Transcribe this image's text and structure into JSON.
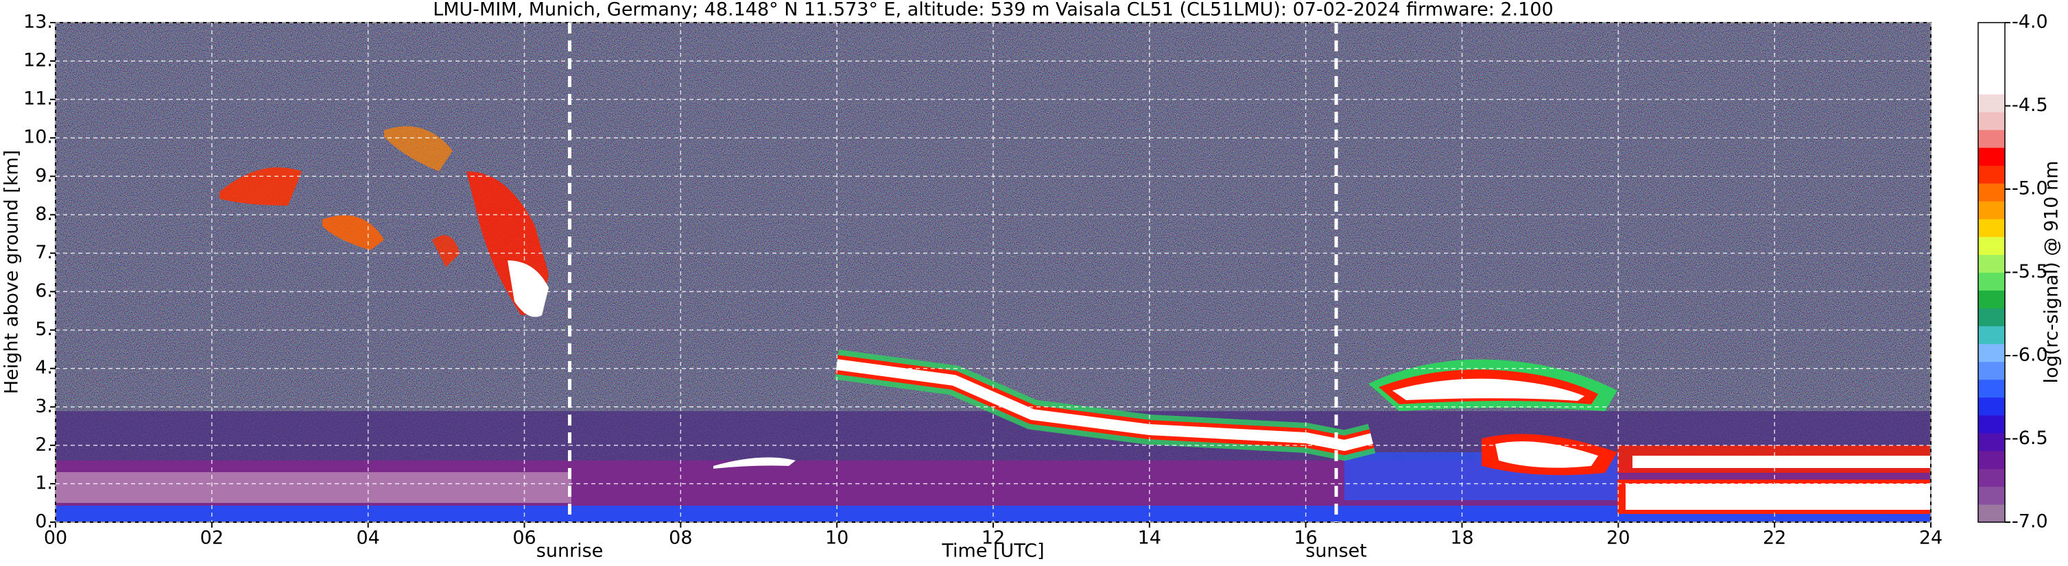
{
  "chart_data": {
    "type": "heatmap",
    "title": "LMU-MIM, Munich, Germany; 48.148° N 11.573° E, altitude: 539 m    Vaisala CL51 (CL51LMU): 07-02-2024    firmware: 2.100",
    "x_label": "Time [UTC]",
    "y_label": "Height above ground [km]",
    "colorbar_label": "log(rc-signal) @ 910 nm",
    "xlim": [
      0,
      24
    ],
    "xticks": [
      {
        "value": 0,
        "label": "00"
      },
      {
        "value": 2,
        "label": "02"
      },
      {
        "value": 4,
        "label": "04"
      },
      {
        "value": 6,
        "label": "06"
      },
      {
        "value": 8,
        "label": "08"
      },
      {
        "value": 10,
        "label": "10"
      },
      {
        "value": 12,
        "label": "12"
      },
      {
        "value": 14,
        "label": "14"
      },
      {
        "value": 16,
        "label": "16"
      },
      {
        "value": 18,
        "label": "18"
      },
      {
        "value": 20,
        "label": "20"
      },
      {
        "value": 22,
        "label": "22"
      },
      {
        "value": 24,
        "label": "24"
      }
    ],
    "ylim": [
      0,
      13
    ],
    "yticks": [
      {
        "value": 0,
        "label": "0."
      },
      {
        "value": 1,
        "label": "1."
      },
      {
        "value": 2,
        "label": "2."
      },
      {
        "value": 3,
        "label": "3."
      },
      {
        "value": 4,
        "label": "4."
      },
      {
        "value": 5,
        "label": "5."
      },
      {
        "value": 6,
        "label": "6."
      },
      {
        "value": 7,
        "label": "7."
      },
      {
        "value": 8,
        "label": "8."
      },
      {
        "value": 9,
        "label": "9."
      },
      {
        "value": 10,
        "label": "10."
      },
      {
        "value": 11,
        "label": "11."
      },
      {
        "value": 12,
        "label": "12."
      },
      {
        "value": 13,
        "label": "13."
      }
    ],
    "clim": [
      -7,
      -4
    ],
    "cticks": [
      {
        "value": -4,
        "label": "-4.0"
      },
      {
        "value": -4.5,
        "label": "-4.5"
      },
      {
        "value": -5,
        "label": "-5.0"
      },
      {
        "value": -5.5,
        "label": "-5.5"
      },
      {
        "value": -6,
        "label": "-6.0"
      },
      {
        "value": -6.5,
        "label": "-6.5"
      },
      {
        "value": -7,
        "label": "-7.0"
      }
    ],
    "colorscale": [
      "#9a78a0",
      "#8a50a0",
      "#7a3098",
      "#6a1a9a",
      "#5010b0",
      "#3010d0",
      "#2030f0",
      "#3060ff",
      "#5a90ff",
      "#80b8ff",
      "#40c0c0",
      "#20a070",
      "#20b040",
      "#60e060",
      "#a0f060",
      "#e0ff40",
      "#ffd000",
      "#ffa000",
      "#ff7000",
      "#ff3000",
      "#ff0000",
      "#f08080",
      "#f0c0c0",
      "#f0dada",
      "#ffffff",
      "#ffffff",
      "#ffffff",
      "#ffffff"
    ],
    "grid": true,
    "annotations": [
      {
        "text": "sunrise",
        "x": 6.58
      },
      {
        "text": "sunset",
        "x": 16.39
      }
    ]
  }
}
